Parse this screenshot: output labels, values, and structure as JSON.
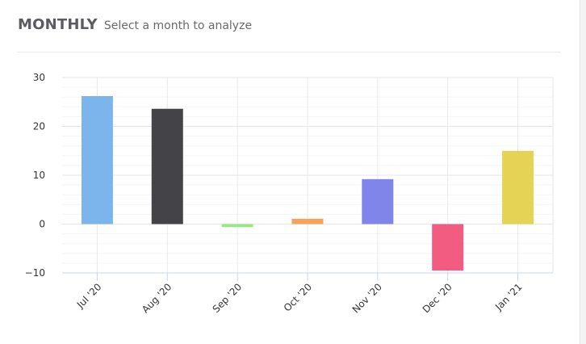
{
  "header": {
    "title": "MONTHLY",
    "subtitle": "Select a month to analyze"
  },
  "chart_data": {
    "type": "bar",
    "categories": [
      "Jul '20",
      "Aug '20",
      "Sep '20",
      "Oct '20",
      "Nov '20",
      "Dec '20",
      "Jan '21"
    ],
    "values": [
      26.2,
      23.6,
      -0.6,
      1.1,
      9.2,
      -9.5,
      15.0
    ],
    "colors": [
      "#7cb5ec",
      "#434348",
      "#90ed7d",
      "#f7a35c",
      "#8085e9",
      "#f15c80",
      "#e4d354"
    ],
    "title": "",
    "xlabel": "",
    "ylabel": "",
    "ylim": [
      -10,
      30
    ],
    "yticks": [
      -10,
      0,
      10,
      20,
      30
    ],
    "ytick_labels": [
      "−10",
      "0",
      "10",
      "20",
      "30"
    ],
    "grid": true
  }
}
